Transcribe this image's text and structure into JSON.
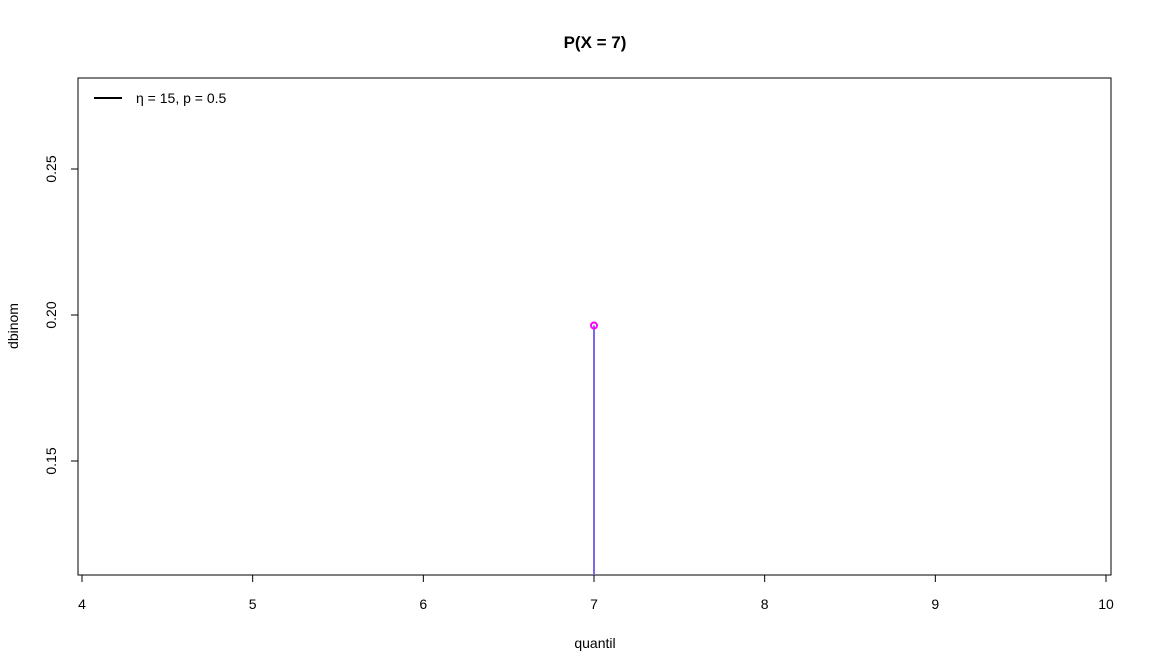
{
  "chart_data": {
    "type": "scatter",
    "title": "P(X = 7)",
    "xlabel": "quantil",
    "ylabel": "dbinom",
    "xlim": [
      4,
      10
    ],
    "ylim": [
      0.11,
      0.28
    ],
    "xticks": [
      4,
      5,
      6,
      7,
      8,
      9,
      10
    ],
    "yticks": [
      0.15,
      0.2,
      0.25
    ],
    "ytick_labels": [
      "0.15",
      "0.20",
      "0.25"
    ],
    "grid": false,
    "legend": {
      "position": "top-left",
      "entries": [
        {
          "label": "η = 15, p = 0.5",
          "color": "#000000"
        }
      ]
    },
    "series": [
      {
        "x": [
          7
        ],
        "y": [
          0.1964
        ],
        "line_color": "#7b68ee",
        "point_color": "#ff00ff"
      }
    ]
  }
}
